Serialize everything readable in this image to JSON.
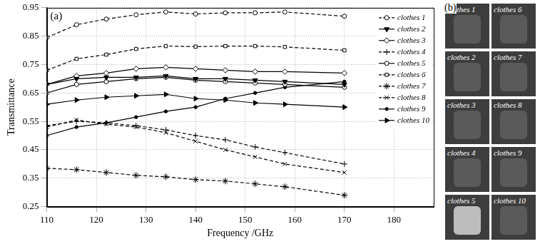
{
  "chart_data": {
    "type": "line",
    "panel_label": "(a)",
    "x_label": "Frequency /GHz",
    "y_label": "Transmittance",
    "x": [
      110,
      116,
      122,
      128,
      134,
      140,
      146,
      152,
      158,
      170
    ],
    "xlim": [
      110,
      188
    ],
    "xticks": [
      110,
      120,
      130,
      140,
      150,
      160,
      170,
      180
    ],
    "ylim": [
      0.25,
      0.95
    ],
    "yticks": [
      0.25,
      0.35,
      0.45,
      0.55,
      0.65,
      0.75,
      0.85,
      0.95
    ],
    "grid": true,
    "legend": "upper right",
    "series": [
      {
        "name": "clothes 1",
        "color": "#000000",
        "marker": "circle",
        "line_style": "dashed",
        "values": [
          0.845,
          0.89,
          0.91,
          0.925,
          0.935,
          0.928,
          0.932,
          0.932,
          0.935,
          0.92
        ]
      },
      {
        "name": "clothes 2",
        "color": "#000000",
        "marker": "triangle_down",
        "line_style": "solid",
        "values": [
          0.68,
          0.7,
          0.705,
          0.705,
          0.71,
          0.7,
          0.7,
          0.695,
          0.69,
          0.68
        ]
      },
      {
        "name": "clothes 3",
        "color": "#000000",
        "marker": "diamond",
        "line_style": "solid",
        "values": [
          0.68,
          0.71,
          0.72,
          0.735,
          0.74,
          0.735,
          0.73,
          0.725,
          0.725,
          0.72
        ]
      },
      {
        "name": "clothes 4",
        "color": "#000000",
        "marker": "plus",
        "line_style": "dashed",
        "values": [
          0.535,
          0.55,
          0.545,
          0.535,
          0.52,
          0.5,
          0.485,
          0.46,
          0.44,
          0.4
        ]
      },
      {
        "name": "clothes 5",
        "color": "#000000",
        "marker": "circle",
        "line_style": "solid",
        "values": [
          0.65,
          0.68,
          0.69,
          0.7,
          0.705,
          0.695,
          0.69,
          0.685,
          0.68,
          0.67
        ]
      },
      {
        "name": "clothes 6",
        "color": "#000000",
        "marker": "square",
        "line_style": "dashed",
        "values": [
          0.73,
          0.77,
          0.785,
          0.805,
          0.815,
          0.813,
          0.815,
          0.815,
          0.812,
          0.8
        ]
      },
      {
        "name": "clothes 7",
        "color": "#000000",
        "marker": "star",
        "line_style": "dashed",
        "values": [
          0.385,
          0.38,
          0.37,
          0.36,
          0.355,
          0.345,
          0.34,
          0.33,
          0.32,
          0.29
        ]
      },
      {
        "name": "clothes 8",
        "color": "#000000",
        "marker": "x",
        "line_style": "dashed",
        "values": [
          0.53,
          0.555,
          0.54,
          0.53,
          0.51,
          0.48,
          0.45,
          0.425,
          0.4,
          0.37
        ]
      },
      {
        "name": "clothes 9",
        "color": "#000000",
        "marker": "dot",
        "line_style": "solid",
        "values": [
          0.5,
          0.53,
          0.545,
          0.565,
          0.585,
          0.6,
          0.63,
          0.65,
          0.67,
          0.69
        ]
      },
      {
        "name": "clothes 10",
        "color": "#000000",
        "marker": "triangle_right",
        "line_style": "solid",
        "values": [
          0.61,
          0.625,
          0.635,
          0.64,
          0.645,
          0.63,
          0.625,
          0.615,
          0.61,
          0.6
        ]
      }
    ]
  },
  "photos": {
    "panel_label": "(b)",
    "labels": [
      "clothes 1",
      "clothes 6",
      "clothes 2",
      "clothes 7",
      "clothes 3",
      "clothes 8",
      "clothes 4",
      "clothes 9",
      "clothes 5",
      "clothes 10"
    ]
  }
}
